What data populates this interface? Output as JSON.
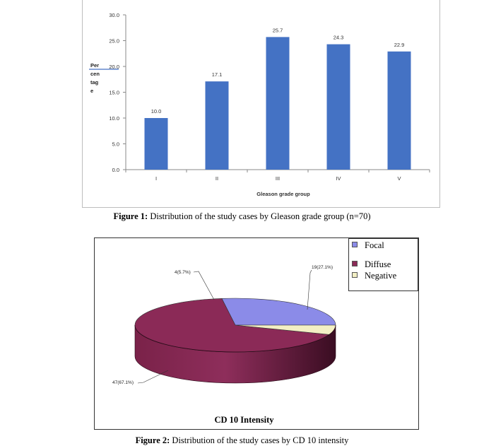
{
  "chart_data": [
    {
      "type": "bar",
      "title": "",
      "xlabel": "Gleason grade group",
      "ylabel": "Percentage",
      "ylabel_lines": [
        "Per",
        "cen",
        "tag",
        "e"
      ],
      "categories": [
        "I",
        "II",
        "III",
        "IV",
        "V"
      ],
      "values": [
        10.0,
        17.1,
        25.7,
        24.3,
        22.9
      ],
      "data_labels": [
        "10.0",
        "17.1",
        "25.7",
        "24.3",
        "22.9"
      ],
      "ylim": [
        0,
        30
      ],
      "yticks": [
        "0.0",
        "5.0",
        "10.0",
        "15.0",
        "20.0",
        "25.0",
        "30.0"
      ],
      "bar_color": "#4472c4",
      "grid": false,
      "legend": "none"
    },
    {
      "type": "pie",
      "title": "CD 10 Intensity",
      "style": "3d",
      "slices": [
        {
          "name": "Focal",
          "value": 19,
          "label": "19(27.1%)",
          "color": "#8b8be8"
        },
        {
          "name": "Diffuse",
          "value": 47,
          "label": "47(67.1%)",
          "color": "#8b2a57"
        },
        {
          "name": "Negative",
          "value": 4,
          "label": "4(5.7%)",
          "color": "#f3efc4"
        }
      ],
      "legend": "top-right"
    }
  ],
  "captions": {
    "figure1_bold": "Figure 1:",
    "figure1_text": " Distribution of the study cases by Gleason grade group (n=70)",
    "figure2_bold": "Figure 2:",
    "figure2_text": " Distribution of the study cases by CD 10 intensity"
  }
}
